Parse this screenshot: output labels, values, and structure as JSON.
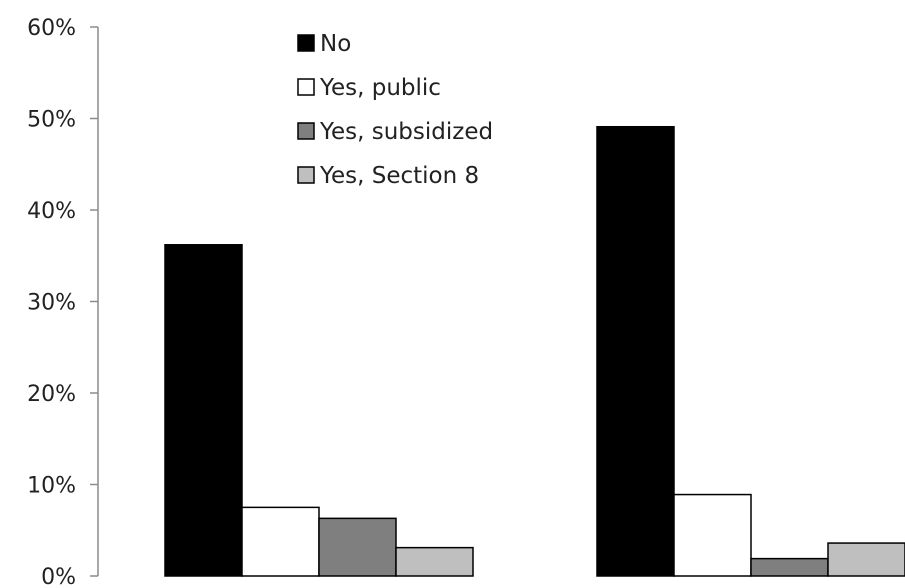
{
  "chart_data": {
    "type": "bar",
    "title": "",
    "xlabel": "",
    "ylabel": "",
    "categories": [
      "",
      ""
    ],
    "series": [
      {
        "name": "No",
        "values": [
          36.2,
          49.1
        ],
        "color": "#000000"
      },
      {
        "name": "Yes, public",
        "values": [
          7.5,
          8.9
        ],
        "color": "#ffffff"
      },
      {
        "name": "Yes, subsidized",
        "values": [
          6.3,
          1.9
        ],
        "color": "#7f7f7f"
      },
      {
        "name": "Yes, Section 8",
        "values": [
          3.1,
          3.6
        ],
        "color": "#bfbfbf"
      }
    ],
    "ylim": [
      0,
      60
    ],
    "yticks": [
      0,
      10,
      20,
      30,
      40,
      50,
      60
    ],
    "ytick_labels": [
      "0%",
      "10%",
      "20%",
      "30%",
      "40%",
      "50%",
      "60%"
    ],
    "grid": false,
    "legend_position": "top-center"
  }
}
